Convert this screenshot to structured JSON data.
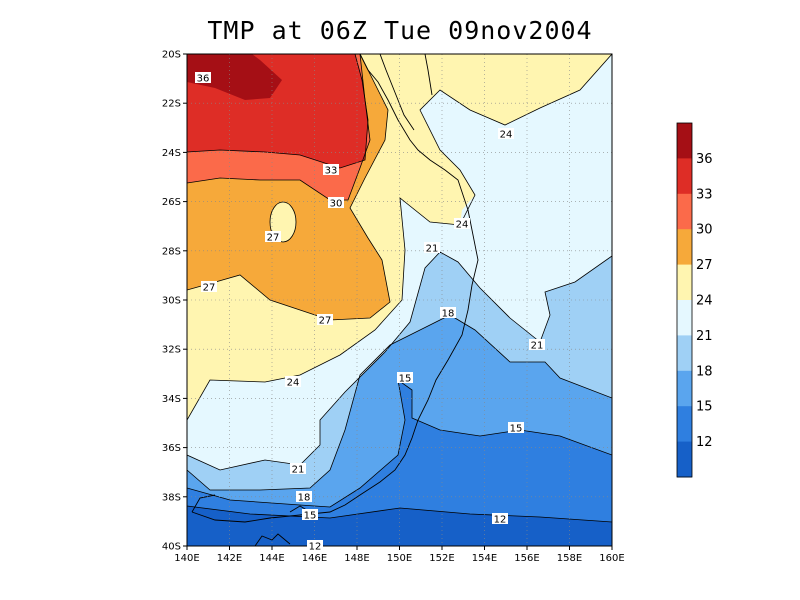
{
  "title": "TMP at 06Z Tue 09nov2004",
  "latitude_ticks": [
    "20S",
    "22S",
    "24S",
    "26S",
    "28S",
    "30S",
    "32S",
    "34S",
    "36S",
    "38S",
    "40S"
  ],
  "longitude_ticks": [
    "140E",
    "142E",
    "144E",
    "146E",
    "148E",
    "150E",
    "152E",
    "154E",
    "156E",
    "158E",
    "160E"
  ],
  "colorbar": {
    "labels": [
      "36",
      "33",
      "30",
      "27",
      "24",
      "21",
      "18",
      "15",
      "12"
    ],
    "colors": [
      "#a50f15",
      "#de2d26",
      "#fb6a4a",
      "#f6a93a",
      "#fff5b0",
      "#e5f8ff",
      "#9fd0f5",
      "#5aa5ee",
      "#2f7fe0",
      "#1660c8"
    ]
  },
  "contour_labels": [
    "36",
    "33",
    "30",
    "27",
    "27",
    "27",
    "24",
    "24",
    "24",
    "21",
    "21",
    "21",
    "18",
    "18",
    "15",
    "15",
    "15",
    "12",
    "12"
  ],
  "colors": {
    "c36": "#a50f15",
    "c33": "#de2d26",
    "c30": "#fb6a4a",
    "c27": "#f6a93a",
    "c24": "#fff5b0",
    "c21": "#e5f8ff",
    "c18": "#9fd0f5",
    "c15": "#5aa5ee",
    "c12": "#2f7fe0",
    "c9": "#1660c8"
  }
}
